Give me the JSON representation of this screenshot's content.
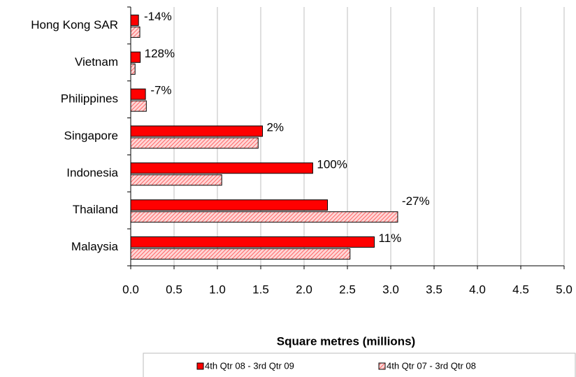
{
  "chart_data": {
    "type": "bar",
    "orientation": "horizontal",
    "categories": [
      "Hong Kong SAR",
      "Vietnam",
      "Philippines",
      "Singapore",
      "Indonesia",
      "Thailand",
      "Malaysia"
    ],
    "series": [
      {
        "name": "4th Qtr 08 - 3rd Qtr 09",
        "color": "#ff0000",
        "values": [
          0.09,
          0.11,
          0.17,
          1.52,
          2.1,
          2.27,
          2.81
        ]
      },
      {
        "name": "4th Qtr 07 - 3rd Qtr 08",
        "color": "#ff9999",
        "hatch": true,
        "values": [
          0.105,
          0.05,
          0.18,
          1.47,
          1.05,
          3.08,
          2.53
        ]
      }
    ],
    "change_labels": [
      "-14%",
      "128%",
      "-7%",
      "2%",
      "100%",
      "-27%",
      "11%"
    ],
    "x_label": "Square metres (millions)",
    "xlim": [
      0,
      5
    ],
    "xticks": [
      {
        "value": 0,
        "label": "0.0"
      },
      {
        "value": 0.5,
        "label": "0.5"
      },
      {
        "value": 1,
        "label": "1.0"
      },
      {
        "value": 1.5,
        "label": "1.5"
      },
      {
        "value": 2,
        "label": "2.0"
      },
      {
        "value": 2.5,
        "label": "2.5"
      },
      {
        "value": 3,
        "label": "3.0"
      },
      {
        "value": 3.5,
        "label": "3.5"
      },
      {
        "value": 4,
        "label": "4.0"
      },
      {
        "value": 4.5,
        "label": "4.5"
      },
      {
        "value": 5,
        "label": "5.0"
      }
    ],
    "grid": true,
    "legend": "bottom"
  }
}
